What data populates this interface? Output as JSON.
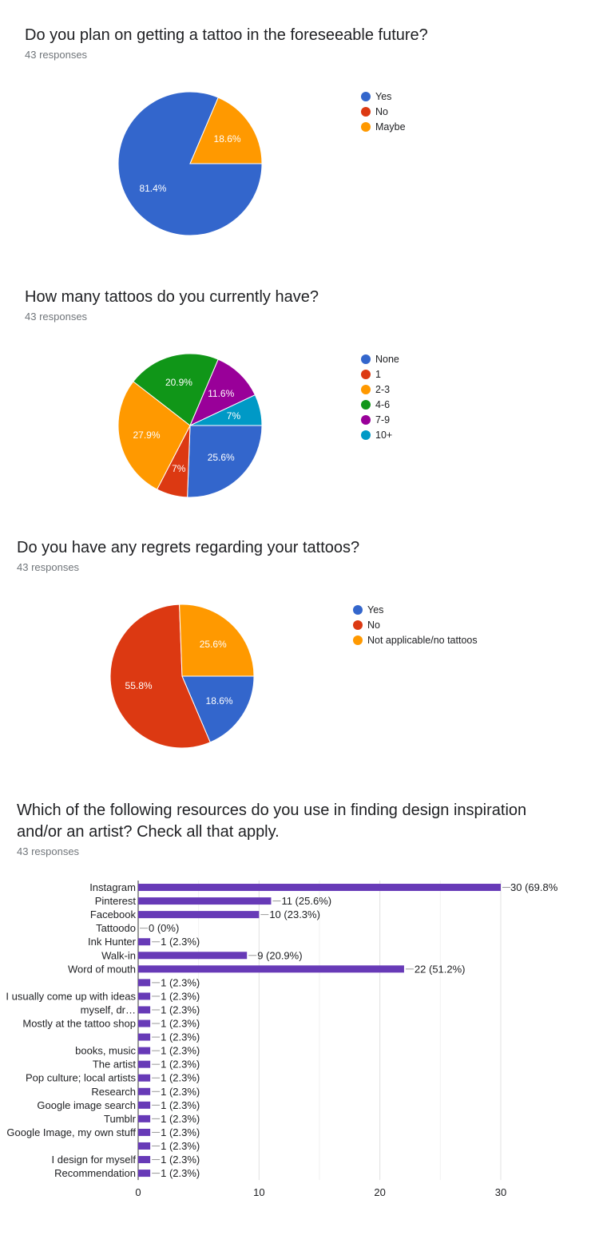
{
  "questions": [
    {
      "title": "Do you plan on getting a tattoo in the foreseeable future?",
      "responses": "43 responses"
    },
    {
      "title": "How many tattoos do you currently have?",
      "responses": "43 responses"
    },
    {
      "title": "Do you have any regrets regarding your tattoos?",
      "responses": "43 responses"
    },
    {
      "title_line1": "Which of the following resources do you use in finding design inspiration",
      "title_line2": "and/or an artist? Check all that apply.",
      "responses": "43 responses"
    }
  ],
  "colors": {
    "blue": "#3366cc",
    "red": "#dc3912",
    "orange": "#ff9900",
    "green": "#109618",
    "purple": "#990099",
    "teal": "#0099c6",
    "bar": "#673ab7"
  },
  "chart_data": [
    {
      "type": "pie",
      "categories": [
        "Yes",
        "No",
        "Maybe"
      ],
      "values": [
        81.4,
        0,
        18.6
      ],
      "labels": [
        "81.4%",
        "",
        "18.6%"
      ],
      "colors": [
        "#3366cc",
        "#dc3912",
        "#ff9900"
      ],
      "legend_position": "right"
    },
    {
      "type": "pie",
      "categories": [
        "None",
        "1",
        "2-3",
        "4-6",
        "7-9",
        "10+"
      ],
      "values": [
        25.6,
        7,
        27.9,
        20.9,
        11.6,
        7
      ],
      "labels": [
        "25.6%",
        "7%",
        "27.9%",
        "20.9%",
        "11.6%",
        "7%"
      ],
      "colors": [
        "#3366cc",
        "#dc3912",
        "#ff9900",
        "#109618",
        "#990099",
        "#0099c6"
      ],
      "legend_position": "right"
    },
    {
      "type": "pie",
      "categories": [
        "Yes",
        "No",
        "Not applicable/no tattoos"
      ],
      "values": [
        18.6,
        55.8,
        25.6
      ],
      "labels": [
        "18.6%",
        "55.8%",
        "25.6%"
      ],
      "colors": [
        "#3366cc",
        "#dc3912",
        "#ff9900"
      ],
      "legend_position": "right"
    },
    {
      "type": "bar",
      "orientation": "horizontal",
      "categories": [
        "Instagram",
        "Pinterest",
        "Facebook",
        "Tattoodo",
        "Ink Hunter",
        "Walk-in",
        "Word of mouth",
        "",
        "I usually come up with ideas",
        "myself, dr…",
        "Mostly at the tattoo shop",
        "",
        "books, music",
        "The artist",
        "Pop culture; local artists",
        "Research",
        "Google image search",
        "Tumblr",
        "Google Image, my own stuff",
        "",
        "I design for myself",
        "Recommendation"
      ],
      "values": [
        30,
        11,
        10,
        0,
        1,
        9,
        22,
        1,
        1,
        1,
        1,
        1,
        1,
        1,
        1,
        1,
        1,
        1,
        1,
        1,
        1,
        1
      ],
      "data_labels": [
        "30 (69.8%",
        "11 (25.6%)",
        "10 (23.3%)",
        "0 (0%)",
        "1 (2.3%)",
        "9 (20.9%)",
        "22 (51.2%)",
        "1 (2.3%)",
        "1 (2.3%)",
        "1 (2.3%)",
        "1 (2.3%)",
        "1 (2.3%)",
        "1 (2.3%)",
        "1 (2.3%)",
        "1 (2.3%)",
        "1 (2.3%)",
        "1 (2.3%)",
        "1 (2.3%)",
        "1 (2.3%)",
        "1 (2.3%)",
        "1 (2.3%)",
        "1 (2.3%)"
      ],
      "xticks": [
        "0",
        "10",
        "20",
        "30"
      ],
      "xlim": [
        0,
        30
      ],
      "grid": true
    }
  ]
}
